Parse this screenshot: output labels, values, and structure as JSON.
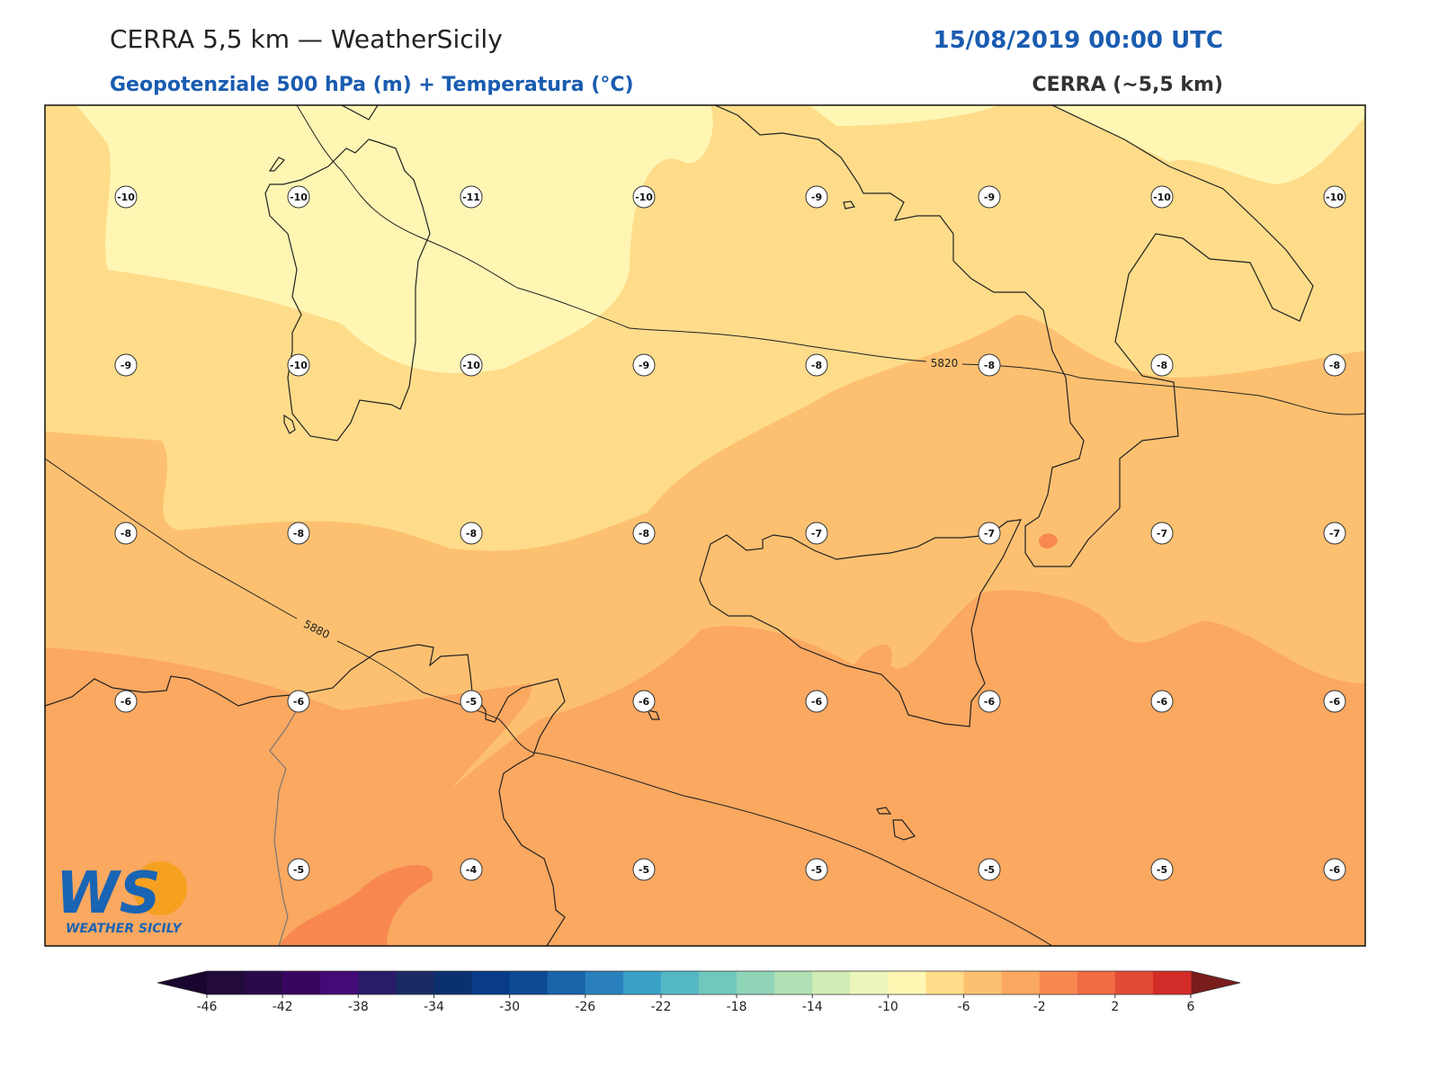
{
  "header": {
    "title": "CERRA 5,5 km — WeatherSicily",
    "datetime": "15/08/2019 00:00 UTC",
    "subtitle": "Geopotenziale 500 hPa (m) + Temperatura (°C)",
    "model": "CERRA (~5,5 km)"
  },
  "map": {
    "temperature_labels": [
      [
        -10,
        -10,
        -11,
        -10,
        -9,
        -9,
        -10,
        -10
      ],
      [
        -9,
        -10,
        -10,
        -9,
        -8,
        -8,
        -8,
        -8
      ],
      [
        -8,
        -8,
        -8,
        -8,
        -7,
        -7,
        -7,
        -7
      ],
      [
        -6,
        -6,
        -5,
        -6,
        -6,
        -6,
        -6,
        -6
      ],
      [
        null,
        -5,
        -4,
        -5,
        -5,
        -5,
        -5,
        -6
      ]
    ],
    "contour_labels": [
      5820,
      5880
    ]
  },
  "colorbar": {
    "ticks": [
      -46,
      -42,
      -38,
      -34,
      -30,
      -26,
      -22,
      -18,
      -14,
      -10,
      -6,
      -2,
      2,
      6
    ],
    "colors": [
      "#220a3c",
      "#2a0a4a",
      "#3a0560",
      "#460a78",
      "#2a1a6a",
      "#1a2a64",
      "#0a3070",
      "#083c88",
      "#0c4a96",
      "#1a64ac",
      "#2a80bc",
      "#3aa0c8",
      "#54b8c4",
      "#70c8bc",
      "#90d4b8",
      "#b0e0b4",
      "#d0ecb4",
      "#eaf6bc",
      "#fff6b4",
      "#fedc8a",
      "#fdc070",
      "#fba860",
      "#f88850",
      "#f06c44",
      "#e24c34",
      "#d42c28"
    ],
    "under_color": "#1a0530",
    "over_color": "#7a1c1c"
  },
  "logo": {
    "mark": "WS",
    "text": "WEATHER SICILY"
  }
}
